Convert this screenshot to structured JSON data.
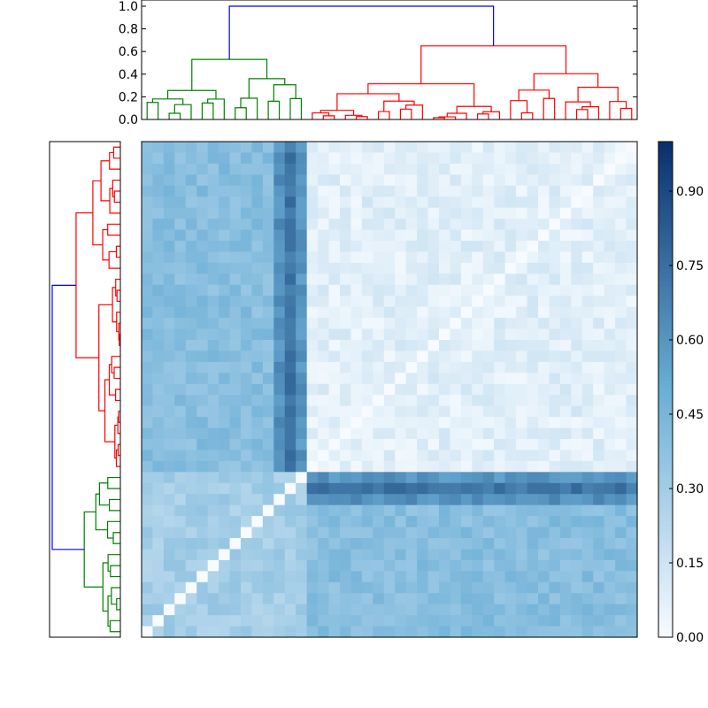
{
  "chart_data": {
    "type": "heatmap",
    "title": "",
    "xlabel": "",
    "ylabel": "",
    "n": 45,
    "grid": false,
    "colormap": "Blues",
    "colors": {
      "cmap_low": "#f7fbff",
      "cmap_mid": "#6baed6",
      "cmap_high": "#08306b",
      "dendrogram_top_link": "#0000ff",
      "cluster_small": "#008000",
      "cluster_large": "#ff0000",
      "axes_border": "#000000"
    },
    "colorbar": {
      "range": [
        0.0,
        1.0
      ],
      "ticks": [
        0.0,
        0.15,
        0.3,
        0.45,
        0.6,
        0.75,
        0.9
      ],
      "tick_labels": [
        "0.00",
        "0.15",
        "0.30",
        "0.45",
        "0.60",
        "0.75",
        "0.90"
      ],
      "placement": "right"
    },
    "dendrogram_top": {
      "ylim": [
        0.0,
        1.0
      ],
      "y_ticks": [
        0.0,
        0.2,
        0.4,
        0.6,
        0.8,
        1.0
      ],
      "y_tick_labels": [
        "0.0",
        "0.2",
        "0.4",
        "0.6",
        "0.8",
        "1.0"
      ],
      "root_height": 1.0,
      "clusters": [
        {
          "color": "green",
          "leaves": 15,
          "merge_height": 0.53
        },
        {
          "color": "red",
          "leaves": 30,
          "merge_height": 0.65
        }
      ]
    },
    "dendrogram_left": {
      "orientation": "left",
      "clusters": [
        {
          "color": "red",
          "leaves": 30,
          "position": "top"
        },
        {
          "color": "green",
          "leaves": 15,
          "position": "bottom"
        }
      ]
    },
    "matrix_summary": {
      "block_red_within": 0.08,
      "block_green_within": 0.3,
      "between_blocks": 0.4,
      "diagonal": 0.0,
      "max_value": 0.97
    }
  }
}
